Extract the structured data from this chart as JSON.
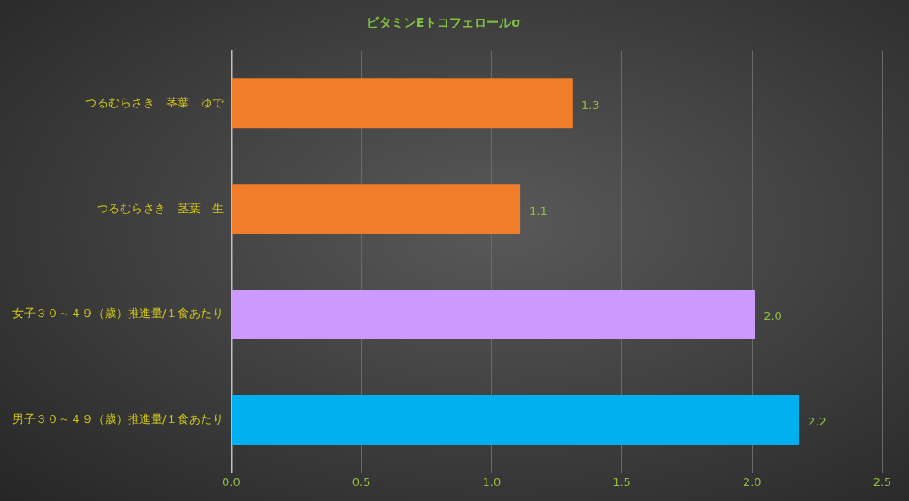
{
  "chart_data": {
    "type": "bar",
    "orientation": "horizontal",
    "title": "ビタミンEトコフェロールσ",
    "categories": [
      "つるむらさき　茎葉　ゆで",
      "つるむらさき　茎葉　生",
      "女子３０～４９（歳）推進量/１食あたり",
      "男子３０～４９（歳）推進量/１食あたり"
    ],
    "values": [
      1.31,
      1.11,
      2.01,
      2.18
    ],
    "colors": [
      "#f07d2a",
      "#f07d2a",
      "#cc99ff",
      "#00b0f0"
    ],
    "value_labels": [
      "1.3",
      "1.1",
      "2.0",
      "2.2"
    ],
    "xlim": [
      0,
      2.5
    ],
    "xticks": [
      {
        "value": 0,
        "label": "0.0"
      },
      {
        "value": 0.5,
        "label": "0.5"
      },
      {
        "value": 1,
        "label": "1.0"
      },
      {
        "value": 1.5,
        "label": "1.5"
      },
      {
        "value": 2,
        "label": "2.0"
      },
      {
        "value": 2.5,
        "label": "2.5"
      }
    ],
    "grid": "x",
    "legend": false
  }
}
